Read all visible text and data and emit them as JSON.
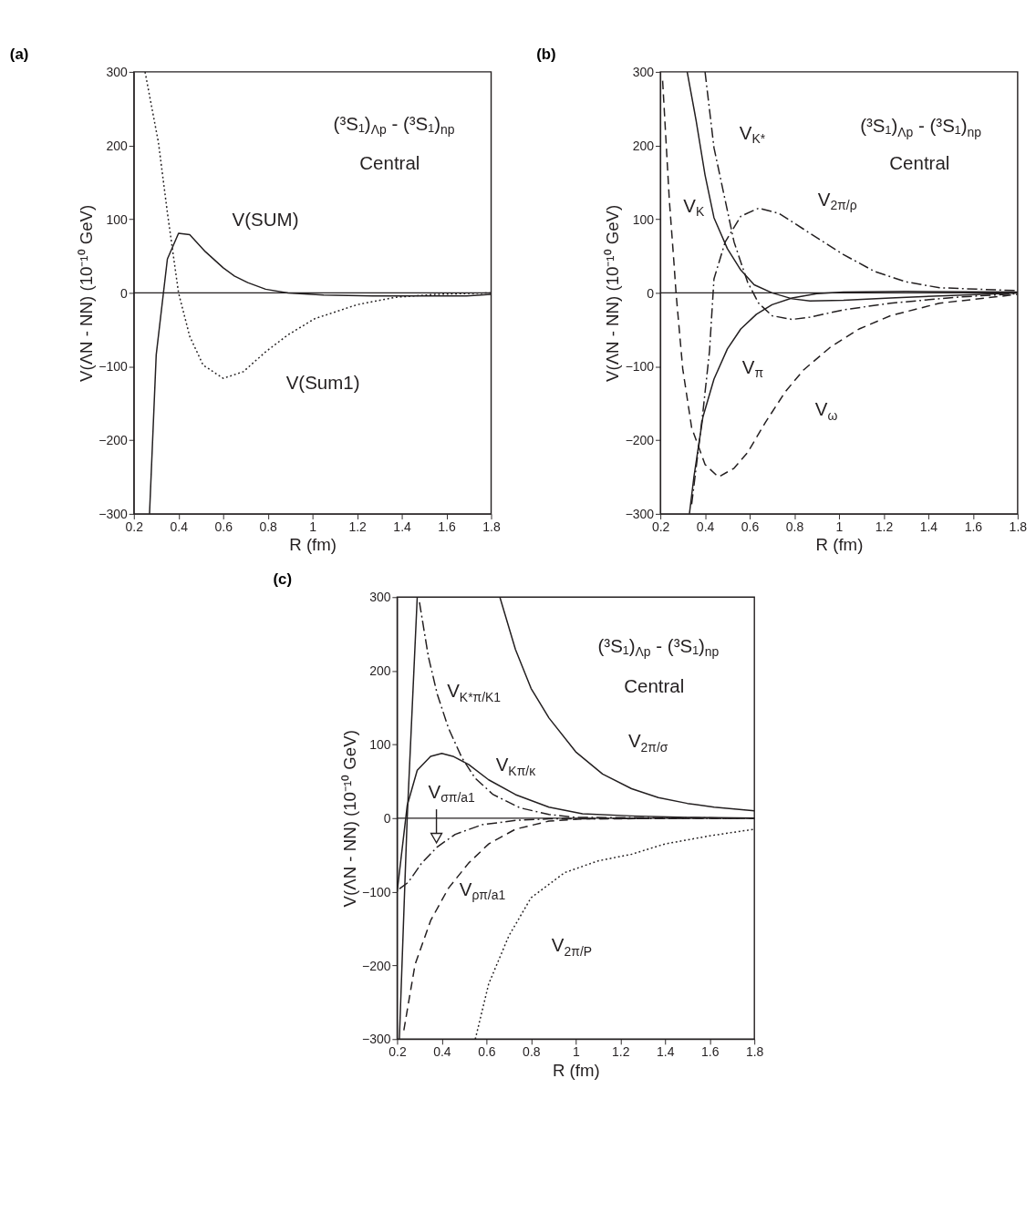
{
  "chart_data": [
    {
      "type": "line",
      "title": "(a)",
      "xlabel": "R (fm)",
      "ylabel": "V(ΛN - NN)  (10⁻¹⁰ GeV)",
      "xlim": [
        0.2,
        1.8
      ],
      "xticks": [
        0.2,
        0.4,
        0.6,
        0.8,
        1,
        1.2,
        1.4,
        1.6,
        1.8
      ],
      "ylim": [
        -300,
        300
      ],
      "yticks": [
        -300,
        -200,
        -100,
        0,
        100,
        200,
        300
      ],
      "grid": false,
      "annotations": [
        "(³S₁)$_{Λp}$ - (³S₁)$_{np}$",
        "Central"
      ],
      "ref_lines": [
        {
          "axis": "y",
          "value": 0,
          "color": "#231f20"
        }
      ],
      "series": [
        {
          "name": "V(SUM)",
          "color": "#231f20",
          "line_style": "solid",
          "x": [
            0.27,
            0.3,
            0.35,
            0.4,
            0.45,
            0.52,
            0.6,
            0.65,
            0.71,
            0.79,
            0.89,
            1.05,
            1.27,
            1.55,
            1.69,
            1.8
          ],
          "values": [
            -300,
            -84,
            46,
            81,
            79,
            56,
            34,
            23,
            14,
            5,
            0,
            -3,
            -4,
            -4,
            -4,
            -2
          ]
        },
        {
          "name": "V(Sum1)",
          "color": "#231f20",
          "line_style": "dotted",
          "x": [
            0.25,
            0.31,
            0.35,
            0.4,
            0.45,
            0.51,
            0.6,
            0.69,
            0.79,
            0.89,
            1.01,
            1.2,
            1.37,
            1.55,
            1.8
          ],
          "values": [
            300,
            204,
            109,
            0,
            -59,
            -98,
            -116,
            -107,
            -80,
            -57,
            -35,
            -16,
            -6,
            -2,
            0
          ]
        }
      ]
    },
    {
      "type": "line",
      "title": "(b)",
      "xlabel": "R (fm)",
      "ylabel": "V(ΛN - NN)  (10⁻¹⁰ GeV)",
      "xlim": [
        0.2,
        1.8
      ],
      "xticks": [
        0.2,
        0.4,
        0.6,
        0.8,
        1,
        1.2,
        1.4,
        1.6,
        1.8
      ],
      "ylim": [
        -300,
        300
      ],
      "yticks": [
        -300,
        -200,
        -100,
        0,
        100,
        200,
        300
      ],
      "grid": false,
      "annotations": [
        "(³S₁)$_{Λp}$ - (³S₁)$_{np}$",
        "Central"
      ],
      "ref_lines": [
        {
          "axis": "y",
          "value": 0,
          "color": "#231f20"
        }
      ],
      "series": [
        {
          "name": "V$_{K*}$",
          "color": "#231f20",
          "line_style": "dashdot",
          "x": [
            0.4,
            0.44,
            0.49,
            0.53,
            0.59,
            0.64,
            0.7,
            0.79,
            0.87,
            1.02,
            1.23,
            1.52,
            1.8
          ],
          "values": [
            300,
            197,
            126,
            69,
            15,
            -14,
            -31,
            -36,
            -33,
            -23,
            -14,
            -6,
            -1
          ]
        },
        {
          "name": "V$_{K}$",
          "color": "#231f20",
          "line_style": "solid",
          "x": [
            0.32,
            0.36,
            0.4,
            0.44,
            0.5,
            0.56,
            0.62,
            0.7,
            0.79,
            0.87,
            1.02,
            1.23,
            1.45,
            1.8
          ],
          "values": [
            300,
            234,
            160,
            102,
            60,
            31,
            11,
            0,
            -8,
            -11,
            -10,
            -7,
            -4,
            0
          ]
        },
        {
          "name": "V$_{2π/ρ}$",
          "color": "#231f20",
          "line_style": "dashdot",
          "x": [
            0.34,
            0.39,
            0.42,
            0.44,
            0.49,
            0.56,
            0.64,
            0.73,
            0.87,
            1.02,
            1.16,
            1.3,
            1.45,
            1.8
          ],
          "values": [
            -287,
            -163,
            -79,
            19,
            69,
            104,
            115,
            108,
            81,
            52,
            29,
            15,
            7,
            3
          ]
        },
        {
          "name": "V$_{π}$",
          "color": "#231f20",
          "line_style": "solid",
          "x": [
            0.33,
            0.35,
            0.39,
            0.44,
            0.5,
            0.56,
            0.63,
            0.7,
            0.79,
            0.9,
            1.02,
            1.3,
            1.8
          ],
          "values": [
            -300,
            -250,
            -169,
            -117,
            -76,
            -49,
            -29,
            -16,
            -7,
            -1,
            1,
            2,
            1
          ]
        },
        {
          "name": "V$_{ω}$",
          "color": "#231f20",
          "line_style": "dashed",
          "x": [
            0.21,
            0.24,
            0.26,
            0.27,
            0.3,
            0.34,
            0.4,
            0.46,
            0.53,
            0.59,
            0.67,
            0.76,
            0.84,
            0.96,
            1.09,
            1.23,
            1.45,
            1.8
          ],
          "values": [
            288,
            126,
            44,
            0,
            -103,
            -183,
            -233,
            -250,
            -238,
            -217,
            -176,
            -134,
            -105,
            -74,
            -49,
            -31,
            -14,
            -2
          ]
        }
      ]
    },
    {
      "type": "line",
      "title": "(c)",
      "xlabel": "R (fm)",
      "ylabel": "V(ΛN - NN)  (10⁻¹⁰ GeV)",
      "xlim": [
        0.2,
        1.8
      ],
      "xticks": [
        0.2,
        0.4,
        0.6,
        0.8,
        1,
        1.2,
        1.4,
        1.6,
        1.8
      ],
      "ylim": [
        -300,
        300
      ],
      "yticks": [
        -300,
        -200,
        -100,
        0,
        100,
        200,
        300
      ],
      "grid": false,
      "annotations": [
        "(³S₁)$_{Λp}$ - (³S₁)$_{np}$",
        "Central"
      ],
      "ref_lines": [
        {
          "axis": "y",
          "value": 0,
          "color": "#231f20"
        }
      ],
      "series": [
        {
          "color": "#231f20",
          "line_style": "solid",
          "x": [
            0.21,
            0.245,
            0.29
          ],
          "values": [
            -300,
            0,
            300
          ]
        },
        {
          "name": "V$_{K*π/K1}$",
          "color": "#231f20",
          "line_style": "dashdot",
          "x": [
            0.3,
            0.34,
            0.38,
            0.43,
            0.49,
            0.55,
            0.63,
            0.75,
            0.88,
            1.0,
            1.8
          ],
          "values": [
            293,
            219,
            168,
            122,
            82,
            54,
            32,
            14,
            5,
            1,
            0
          ]
        },
        {
          "name": "V$_{Kπ/κ}$",
          "color": "#231f20",
          "line_style": "solid",
          "x": [
            0.2,
            0.245,
            0.29,
            0.35,
            0.4,
            0.45,
            0.52,
            0.61,
            0.73,
            0.88,
            1.03,
            1.25,
            1.5,
            1.8
          ],
          "values": [
            -100,
            17,
            65,
            84,
            88,
            84,
            73,
            52,
            32,
            15,
            6,
            3,
            1,
            0
          ]
        },
        {
          "name": "V$_{2π/σ}$",
          "color": "#231f20",
          "line_style": "solid",
          "x": [
            0.66,
            0.73,
            0.8,
            0.88,
            1.0,
            1.12,
            1.25,
            1.37,
            1.5,
            1.62,
            1.8
          ],
          "values": [
            300,
            229,
            176,
            136,
            90,
            60,
            40,
            28,
            20,
            15,
            10
          ]
        },
        {
          "name": "V$_{σπ/a1}$",
          "color": "#231f20",
          "line_style": "dashdot",
          "x": [
            0.21,
            0.25,
            0.31,
            0.38,
            0.46,
            0.58,
            0.73,
            0.88,
            1.8
          ],
          "values": [
            -96,
            -87,
            -61,
            -39,
            -22,
            -9,
            -3,
            -1,
            0
          ]
        },
        {
          "name": "V$_{ρπ/a1}$",
          "color": "#231f20",
          "line_style": "dashed",
          "x": [
            0.23,
            0.28,
            0.35,
            0.43,
            0.52,
            0.61,
            0.73,
            0.88,
            1.03,
            1.8
          ],
          "values": [
            -288,
            -199,
            -139,
            -95,
            -61,
            -35,
            -15,
            -4,
            -1,
            0
          ]
        },
        {
          "name": "V$_{2π/P}$",
          "color": "#231f20",
          "line_style": "dotted",
          "x": [
            0.55,
            0.61,
            0.7,
            0.8,
            0.95,
            1.1,
            1.25,
            1.4,
            1.6,
            1.8
          ],
          "values": [
            -300,
            -225,
            -160,
            -108,
            -74,
            -58,
            -49,
            -35,
            -24,
            -15
          ]
        }
      ]
    }
  ]
}
